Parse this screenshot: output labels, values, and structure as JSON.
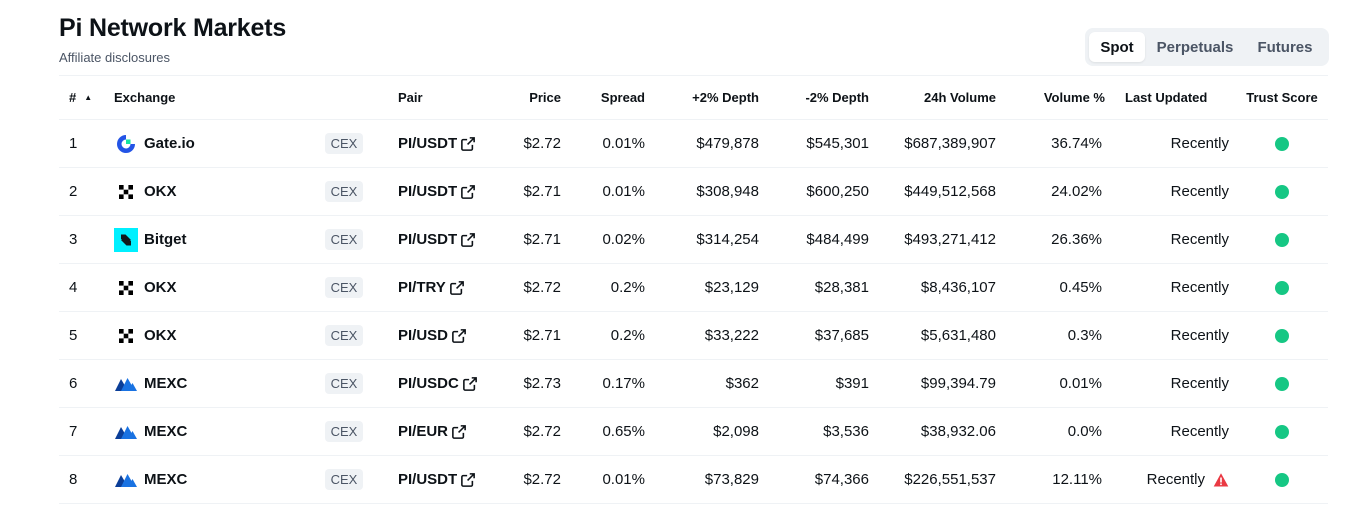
{
  "page": {
    "title": "Pi Network Markets",
    "affiliate": "Affiliate disclosures"
  },
  "tabs": [
    {
      "label": "Spot",
      "active": true
    },
    {
      "label": "Perpetuals",
      "active": false
    },
    {
      "label": "Futures",
      "active": false
    }
  ],
  "columns": {
    "rank": "#",
    "sort_indicator": "▲",
    "exchange": "Exchange",
    "pair": "Pair",
    "price": "Price",
    "spread": "Spread",
    "depth_plus": "+2% Depth",
    "depth_minus": "-2% Depth",
    "volume": "24h Volume",
    "volume_pct": "Volume %",
    "last_updated": "Last Updated",
    "trust_score": "Trust Score"
  },
  "colors": {
    "trust_green": "#16c784",
    "warning_red": "#ea3943",
    "gate_blue": "#2354e6",
    "gate_green": "#17e6a1",
    "bitget_cyan": "#00f0ff",
    "mexc_blue": "#1972e2",
    "mexc_dark": "#0b3e98"
  },
  "rows": [
    {
      "rank": "1",
      "exchange": "Gate.io",
      "logo": "gate-logo-icon",
      "type": "CEX",
      "pair": "PI/USDT",
      "price": "$2.72",
      "spread": "0.01%",
      "depth_plus": "$479,878",
      "depth_minus": "$545,301",
      "volume": "$687,389,907",
      "volume_pct": "36.74%",
      "updated": "Recently",
      "warning": false
    },
    {
      "rank": "2",
      "exchange": "OKX",
      "logo": "okx-logo-icon",
      "type": "CEX",
      "pair": "PI/USDT",
      "price": "$2.71",
      "spread": "0.01%",
      "depth_plus": "$308,948",
      "depth_minus": "$600,250",
      "volume": "$449,512,568",
      "volume_pct": "24.02%",
      "updated": "Recently",
      "warning": false
    },
    {
      "rank": "3",
      "exchange": "Bitget",
      "logo": "bitget-logo-icon",
      "type": "CEX",
      "pair": "PI/USDT",
      "price": "$2.71",
      "spread": "0.02%",
      "depth_plus": "$314,254",
      "depth_minus": "$484,499",
      "volume": "$493,271,412",
      "volume_pct": "26.36%",
      "updated": "Recently",
      "warning": false
    },
    {
      "rank": "4",
      "exchange": "OKX",
      "logo": "okx-logo-icon",
      "type": "CEX",
      "pair": "PI/TRY",
      "price": "$2.72",
      "spread": "0.2%",
      "depth_plus": "$23,129",
      "depth_minus": "$28,381",
      "volume": "$8,436,107",
      "volume_pct": "0.45%",
      "updated": "Recently",
      "warning": false
    },
    {
      "rank": "5",
      "exchange": "OKX",
      "logo": "okx-logo-icon",
      "type": "CEX",
      "pair": "PI/USD",
      "price": "$2.71",
      "spread": "0.2%",
      "depth_plus": "$33,222",
      "depth_minus": "$37,685",
      "volume": "$5,631,480",
      "volume_pct": "0.3%",
      "updated": "Recently",
      "warning": false
    },
    {
      "rank": "6",
      "exchange": "MEXC",
      "logo": "mexc-logo-icon",
      "type": "CEX",
      "pair": "PI/USDC",
      "price": "$2.73",
      "spread": "0.17%",
      "depth_plus": "$362",
      "depth_minus": "$391",
      "volume": "$99,394.79",
      "volume_pct": "0.01%",
      "updated": "Recently",
      "warning": false
    },
    {
      "rank": "7",
      "exchange": "MEXC",
      "logo": "mexc-logo-icon",
      "type": "CEX",
      "pair": "PI/EUR",
      "price": "$2.72",
      "spread": "0.65%",
      "depth_plus": "$2,098",
      "depth_minus": "$3,536",
      "volume": "$38,932.06",
      "volume_pct": "0.0%",
      "updated": "Recently",
      "warning": false
    },
    {
      "rank": "8",
      "exchange": "MEXC",
      "logo": "mexc-logo-icon",
      "type": "CEX",
      "pair": "PI/USDT",
      "price": "$2.72",
      "spread": "0.01%",
      "depth_plus": "$73,829",
      "depth_minus": "$74,366",
      "volume": "$226,551,537",
      "volume_pct": "12.11%",
      "updated": "Recently",
      "warning": true
    }
  ]
}
